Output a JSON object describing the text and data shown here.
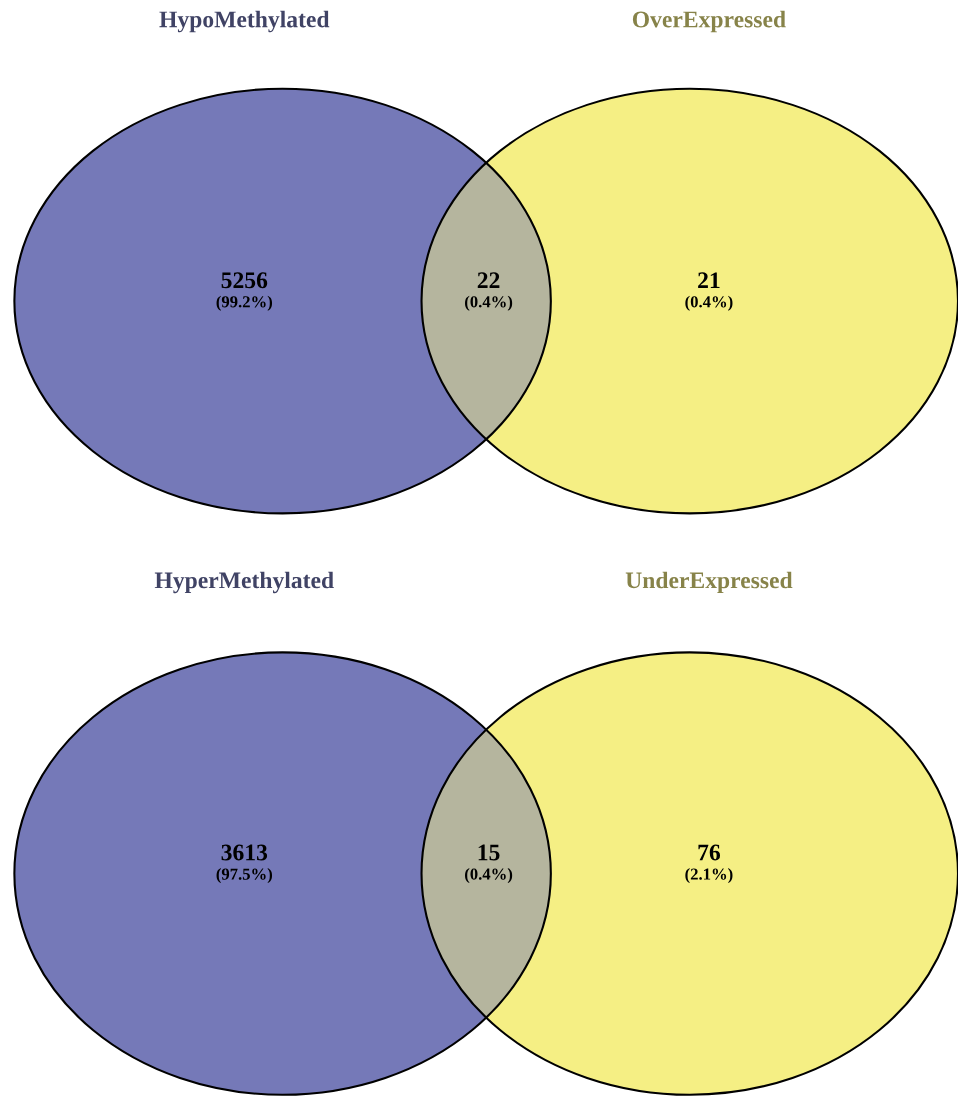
{
  "chart_data": [
    {
      "type": "other",
      "categories": [
        null,
        null,
        null
      ],
      "values": [
        5256,
        22,
        21
      ],
      "colors": [
        "#7579b8",
        "#b5b59e",
        "#f5ef84"
      ],
      "data_labels": true,
      "annotations": [
        "HypoMethylated",
        "OverExpressed",
        "(99.2%)",
        "(0.4%)",
        "(0.4%)"
      ]
    },
    {
      "type": "other",
      "categories": [
        null,
        null,
        null
      ],
      "values": [
        3613,
        15,
        76
      ],
      "colors": [
        "#7579b8",
        "#b5b59e",
        "#f5ef84"
      ],
      "data_labels": true,
      "annotations": [
        "HyperMethylated",
        "UnderExpressed",
        "(97.5%)",
        "(0.4%)",
        "(2.1%)"
      ]
    }
  ]
}
